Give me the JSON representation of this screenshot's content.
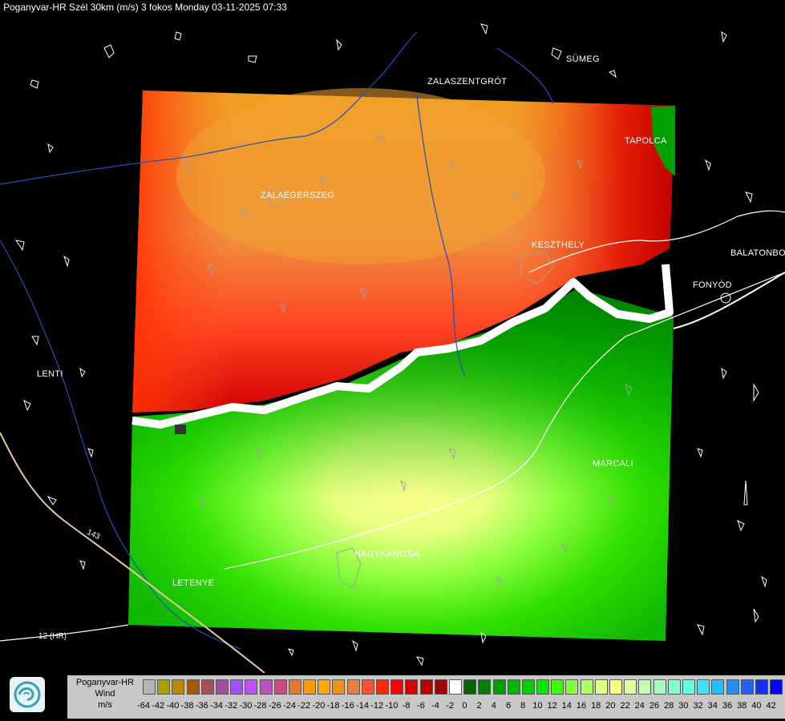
{
  "header": {
    "title": "Poganyvar-HR Szél 30km (m/s) 3 fokos Monday 03-11-2025 07:33"
  },
  "map": {
    "cities": [
      {
        "name": "SÜMEG",
        "id": "sumeg"
      },
      {
        "name": "ZALASZENTGRÓT",
        "id": "zalaszentgrot"
      },
      {
        "name": "TAPOLCA",
        "id": "tapolca"
      },
      {
        "name": "ZALAEGERSZEG",
        "id": "zalaegerszeg"
      },
      {
        "name": "KESZTHELY",
        "id": "keszthely"
      },
      {
        "name": "BALATONBO",
        "id": "balatonbo"
      },
      {
        "name": "FONYÓD",
        "id": "fonyod"
      },
      {
        "name": "LENTI",
        "id": "lenti"
      },
      {
        "name": "MARCALI",
        "id": "marcali"
      },
      {
        "name": "NAGYKANIZSA",
        "id": "nagykanizsa"
      },
      {
        "name": "LETENYE",
        "id": "letenye"
      }
    ],
    "road_labels": [
      "12 (HR)",
      "143"
    ]
  },
  "legend": {
    "labels": [
      "Poganyvar-HR",
      "Wind",
      "m/s"
    ],
    "ticks": [
      "-64",
      "-42",
      "-40",
      "-38",
      "-36",
      "-34",
      "-32",
      "-30",
      "-28",
      "-26",
      "-24",
      "-22",
      "-20",
      "-18",
      "-16",
      "-14",
      "-12",
      "-10",
      "-8",
      "-6",
      "-4",
      "-2",
      "0",
      "2",
      "4",
      "6",
      "8",
      "10",
      "12",
      "14",
      "16",
      "18",
      "20",
      "22",
      "24",
      "26",
      "28",
      "30",
      "32",
      "34",
      "36",
      "38",
      "40",
      "42"
    ],
    "colors": [
      "#b4b4b4",
      "#a8a000",
      "#b88a00",
      "#a85a00",
      "#a85050",
      "#a050a0",
      "#a050ff",
      "#c050ff",
      "#c050c0",
      "#d04880",
      "#e87830",
      "#ff9800",
      "#ffa800",
      "#f09020",
      "#e88040",
      "#ff5030",
      "#ff2800",
      "#ff0000",
      "#d80000",
      "#b80000",
      "#a00000",
      "#ffffff",
      "#006400",
      "#008000",
      "#00a000",
      "#00b800",
      "#00d000",
      "#00e800",
      "#40ff00",
      "#80ff40",
      "#b0ff60",
      "#e0ff80",
      "#ffff80",
      "#e0ffa0",
      "#c0ffb0",
      "#a0ffc0",
      "#80ffd0",
      "#60ffe0",
      "#40e0ff",
      "#20c0ff",
      "#2090ff",
      "#2060ff",
      "#1030ff",
      "#0000ff"
    ]
  }
}
